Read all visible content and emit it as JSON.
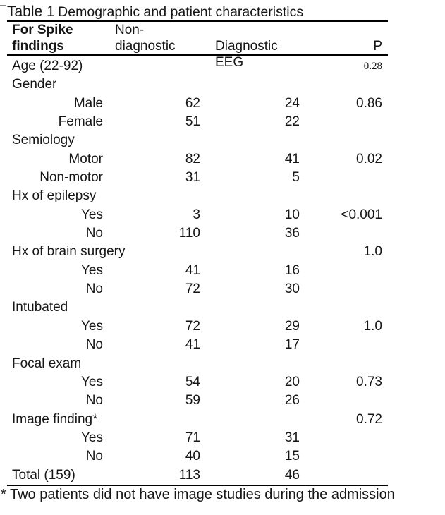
{
  "title": {
    "prefix": "Table 1",
    "subtitle": "Demographic and patient characteristics"
  },
  "table": {
    "header": {
      "col1_line1": "For Spike",
      "col1_line2": "findings",
      "col2_line1": "Non-",
      "col2_line2": "diagnostic",
      "col3_line2": "Diagnostic EEG",
      "col4_line2": "P"
    },
    "rows": [
      {
        "label": "Age (22-92)",
        "type": "section",
        "nondiag": "",
        "diag": "",
        "p": "0.28",
        "p_small": true
      },
      {
        "label": "Gender",
        "type": "section",
        "nondiag": "",
        "diag": "",
        "p": ""
      },
      {
        "label": "Male",
        "type": "sub",
        "nondiag": "62",
        "diag": "24",
        "p": "0.86"
      },
      {
        "label": "Female",
        "type": "sub",
        "nondiag": "51",
        "diag": "22",
        "p": ""
      },
      {
        "label": "Semiology",
        "type": "section",
        "nondiag": "",
        "diag": "",
        "p": ""
      },
      {
        "label": "Motor",
        "type": "sub",
        "nondiag": "82",
        "diag": "41",
        "p": "0.02"
      },
      {
        "label": "Non-motor",
        "type": "sub",
        "nondiag": "31",
        "diag": "5",
        "p": ""
      },
      {
        "label": "Hx of epilepsy",
        "type": "section",
        "nondiag": "",
        "diag": "",
        "p": ""
      },
      {
        "label": "Yes",
        "type": "sub",
        "nondiag": "3",
        "diag": "10",
        "p": "<0.001"
      },
      {
        "label": "No",
        "type": "sub",
        "nondiag": "110",
        "diag": "36",
        "p": ""
      },
      {
        "label": "Hx of brain surgery",
        "type": "section",
        "nondiag": "",
        "diag": "",
        "p": "1.0"
      },
      {
        "label": "Yes",
        "type": "sub",
        "nondiag": "41",
        "diag": "16",
        "p": ""
      },
      {
        "label": "No",
        "type": "sub",
        "nondiag": "72",
        "diag": "30",
        "p": ""
      },
      {
        "label": "Intubated",
        "type": "section",
        "nondiag": "",
        "diag": "",
        "p": ""
      },
      {
        "label": "Yes",
        "type": "sub",
        "nondiag": "72",
        "diag": "29",
        "p": "1.0"
      },
      {
        "label": "No",
        "type": "sub",
        "nondiag": "41",
        "diag": "17",
        "p": ""
      },
      {
        "label": "Focal exam",
        "type": "section",
        "nondiag": "",
        "diag": "",
        "p": ""
      },
      {
        "label": "Yes",
        "type": "sub",
        "nondiag": "54",
        "diag": "20",
        "p": "0.73"
      },
      {
        "label": "No",
        "type": "sub",
        "nondiag": "59",
        "diag": "26",
        "p": ""
      },
      {
        "label": "Image finding*",
        "type": "section",
        "nondiag": "",
        "diag": "",
        "p": "0.72"
      },
      {
        "label": "Yes",
        "type": "sub",
        "nondiag": "71",
        "diag": "31",
        "p": ""
      },
      {
        "label": "No",
        "type": "sub",
        "nondiag": "40",
        "diag": "15",
        "p": ""
      },
      {
        "label": "Total (159)",
        "type": "total",
        "nondiag": "113",
        "diag": "46",
        "p": ""
      }
    ]
  },
  "footnote": "* Two patients did not have image studies during the admission",
  "colors": {
    "page_bg": "#ffffff",
    "text": "#161616",
    "rule": "#000000",
    "handle_border": "#8a8a8a"
  }
}
